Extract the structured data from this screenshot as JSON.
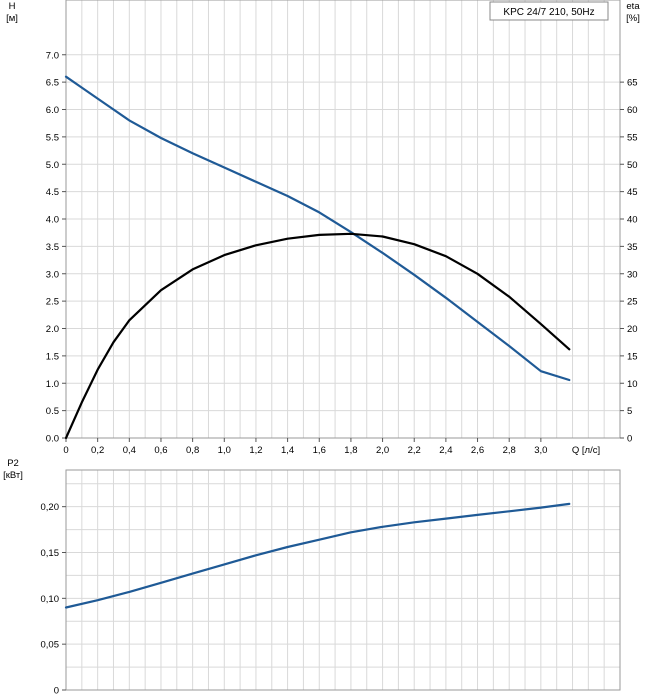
{
  "legend": {
    "model": "KPC 24/7 210, 50Hz"
  },
  "chart_data": [
    {
      "type": "line",
      "panel": "top",
      "x_label": "Q [л/с]",
      "y_left_label": [
        "H",
        "[м]"
      ],
      "y_right_label": [
        "eta",
        "[%]"
      ],
      "x_ticks": [
        "0",
        "0,2",
        "0,4",
        "0,6",
        "0,8",
        "1,0",
        "1,2",
        "1,4",
        "1,6",
        "1,8",
        "2,0",
        "2,2",
        "2,4",
        "2,6",
        "2,8",
        "3,0"
      ],
      "y_left_ticks": [
        "0.0",
        "0.5",
        "1.0",
        "1.5",
        "2.0",
        "2.5",
        "3.0",
        "3.5",
        "4.0",
        "4.5",
        "5.0",
        "5.5",
        "6.0",
        "6.5",
        "7.0"
      ],
      "y_right_ticks": [
        "0",
        "5",
        "10",
        "15",
        "20",
        "25",
        "30",
        "35",
        "40",
        "45",
        "50",
        "55",
        "60",
        "65"
      ],
      "xlim": [
        0,
        3.5
      ],
      "ylim_left": [
        0,
        8
      ],
      "ylim_right": [
        0,
        80
      ],
      "grid": true,
      "series": [
        {
          "name": "H",
          "axis": "left",
          "color": "#1f5a96",
          "points": [
            [
              0,
              6.6
            ],
            [
              0.1,
              6.4
            ],
            [
              0.2,
              6.2
            ],
            [
              0.3,
              6.0
            ],
            [
              0.4,
              5.8
            ],
            [
              0.6,
              5.48
            ],
            [
              0.8,
              5.2
            ],
            [
              1.0,
              4.94
            ],
            [
              1.2,
              4.68
            ],
            [
              1.4,
              4.42
            ],
            [
              1.6,
              4.12
            ],
            [
              1.8,
              3.76
            ],
            [
              2.0,
              3.38
            ],
            [
              2.2,
              2.98
            ],
            [
              2.4,
              2.56
            ],
            [
              2.6,
              2.12
            ],
            [
              2.8,
              1.68
            ],
            [
              3.0,
              1.22
            ],
            [
              3.18,
              1.06
            ]
          ]
        },
        {
          "name": "eta",
          "axis": "right",
          "color": "#000000",
          "points": [
            [
              0,
              0
            ],
            [
              0.1,
              6.5
            ],
            [
              0.2,
              12.5
            ],
            [
              0.3,
              17.5
            ],
            [
              0.4,
              21.5
            ],
            [
              0.6,
              27.0
            ],
            [
              0.8,
              30.8
            ],
            [
              1.0,
              33.4
            ],
            [
              1.2,
              35.2
            ],
            [
              1.4,
              36.4
            ],
            [
              1.6,
              37.1
            ],
            [
              1.8,
              37.3
            ],
            [
              2.0,
              36.8
            ],
            [
              2.2,
              35.4
            ],
            [
              2.4,
              33.2
            ],
            [
              2.6,
              30.0
            ],
            [
              2.8,
              25.8
            ],
            [
              3.0,
              20.8
            ],
            [
              3.18,
              16.2
            ]
          ]
        }
      ]
    },
    {
      "type": "line",
      "panel": "bottom",
      "y_left_label": [
        "P2",
        "[кВт]"
      ],
      "y_left_ticks": [
        "0",
        "0,05",
        "0,10",
        "0,15",
        "0,20"
      ],
      "xlim": [
        0,
        3.5
      ],
      "ylim_left": [
        0,
        0.24
      ],
      "grid": true,
      "series": [
        {
          "name": "P2",
          "axis": "left",
          "color": "#1f5a96",
          "points": [
            [
              0,
              0.09
            ],
            [
              0.2,
              0.098
            ],
            [
              0.4,
              0.107
            ],
            [
              0.6,
              0.117
            ],
            [
              0.8,
              0.127
            ],
            [
              1.0,
              0.137
            ],
            [
              1.2,
              0.147
            ],
            [
              1.4,
              0.156
            ],
            [
              1.6,
              0.164
            ],
            [
              1.8,
              0.172
            ],
            [
              2.0,
              0.178
            ],
            [
              2.2,
              0.183
            ],
            [
              2.4,
              0.187
            ],
            [
              2.6,
              0.191
            ],
            [
              2.8,
              0.195
            ],
            [
              3.0,
              0.199
            ],
            [
              3.18,
              0.203
            ]
          ]
        }
      ]
    }
  ]
}
